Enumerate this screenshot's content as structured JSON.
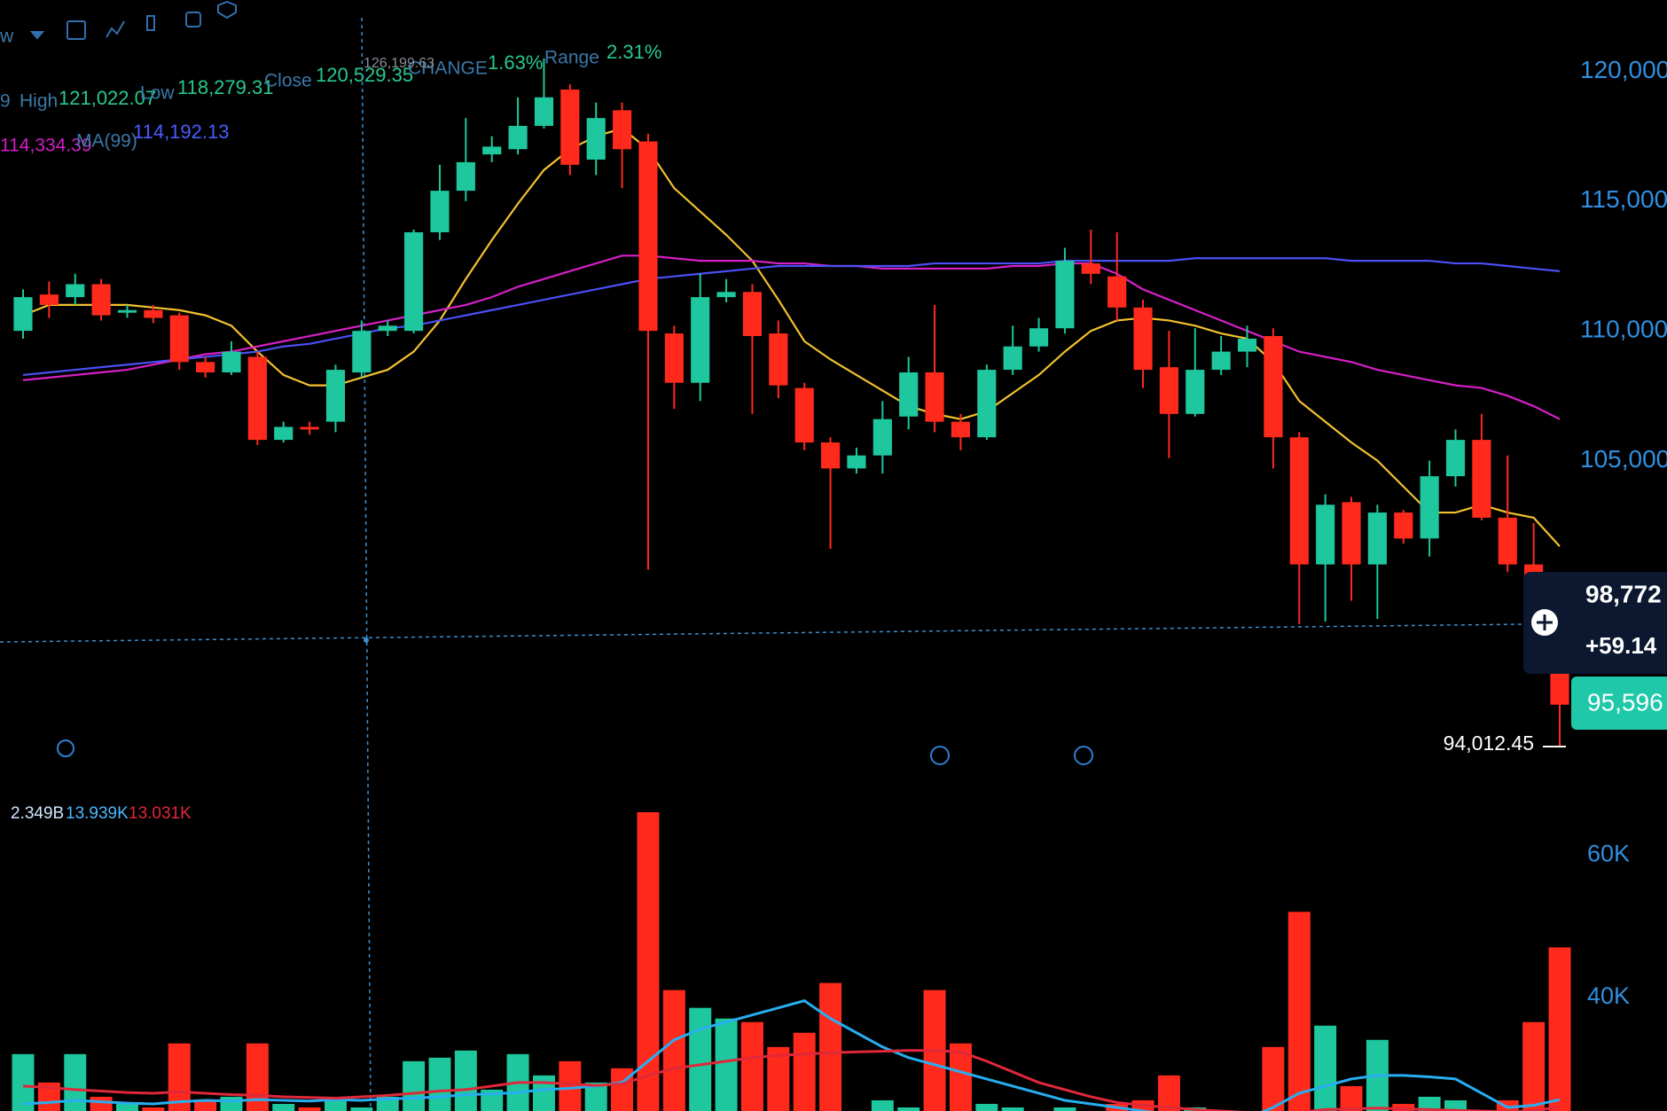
{
  "header": {
    "interval": "w",
    "partial_value": "9",
    "high_label": "High",
    "high_value": "121,022.07",
    "low_label": "Low",
    "low_value": "118,279.31",
    "close_label": "Close",
    "close_value": "120,529.35",
    "change_label": "CHANGE",
    "change_value": "1.63%",
    "range_label": "Range",
    "range_value": "2.31%",
    "ma25_value": "114,334.39",
    "ma99_value": "114,192.13",
    "volume_total": "2.349B",
    "volume_ma1": "13.939K",
    "volume_ma2": "13.031K",
    "max_marker": "126,199.63",
    "min_marker": "94,012.45",
    "crosshair_price": "98,772",
    "crosshair_change": "+59.14",
    "last_price": "95,596"
  },
  "chart_data": [
    {
      "type": "candlestick",
      "up_color": "#1ec79e",
      "down_color": "#ff2a1c",
      "open": [
        110000,
        111400,
        111300,
        111800,
        110700,
        110800,
        110600,
        108800,
        108400,
        109000,
        105800,
        106300,
        106500,
        108400,
        110000,
        110000,
        113800,
        115400,
        116800,
        117000,
        117900,
        119300,
        116600,
        118500,
        117300,
        109900,
        108000,
        111300,
        111500,
        109900,
        107800,
        105700,
        104700,
        105200,
        106700,
        108400,
        106500,
        105900,
        108500,
        109400,
        110100,
        112600,
        112100,
        110900,
        108600,
        106800,
        108500,
        109200,
        109800,
        105900,
        101000,
        103400,
        101000,
        103000,
        102000,
        104400,
        105800,
        102800,
        101000,
        98800
      ],
      "high": [
        111600,
        111900,
        112200,
        112000,
        111000,
        111000,
        110700,
        109000,
        109600,
        109200,
        106500,
        106500,
        108700,
        110400,
        110400,
        113900,
        116400,
        118200,
        117500,
        119000,
        120500,
        119500,
        118800,
        118800,
        117600,
        110200,
        112200,
        112000,
        111800,
        110400,
        108000,
        105900,
        105500,
        107300,
        109000,
        111000,
        106800,
        108700,
        110200,
        110500,
        113200,
        113900,
        113800,
        111200,
        110000,
        110100,
        109800,
        110200,
        110100,
        106100,
        103700,
        103600,
        103300,
        103100,
        105000,
        106200,
        106800,
        105200,
        102600,
        98900
      ],
      "low": [
        109700,
        110500,
        111000,
        110400,
        110500,
        110300,
        108500,
        108200,
        108300,
        105600,
        105700,
        106000,
        106100,
        108200,
        109800,
        109900,
        113500,
        115000,
        116500,
        116800,
        117800,
        116000,
        116000,
        115500,
        100800,
        107000,
        107300,
        111100,
        106800,
        107400,
        105400,
        101600,
        104500,
        104500,
        106200,
        106100,
        105400,
        105800,
        108300,
        109200,
        109900,
        111800,
        110400,
        107800,
        105100,
        106700,
        108300,
        108600,
        104700,
        98700,
        98800,
        99600,
        98900,
        101800,
        101300,
        104000,
        102700,
        100700,
        98500,
        94012.45
      ],
      "close": [
        111300,
        111000,
        111800,
        110600,
        110800,
        110500,
        108800,
        108400,
        109200,
        105800,
        106300,
        106200,
        108500,
        110000,
        110200,
        113800,
        115400,
        116500,
        117100,
        117900,
        119000,
        116400,
        118200,
        117000,
        110000,
        108000,
        111300,
        111500,
        109800,
        107900,
        105700,
        104700,
        105200,
        106600,
        108400,
        106500,
        105900,
        108500,
        109400,
        110100,
        112700,
        112200,
        110900,
        108500,
        106800,
        108500,
        109200,
        109700,
        105900,
        101000,
        103300,
        101000,
        103000,
        102000,
        104400,
        105800,
        102800,
        101000,
        99300,
        95596
      ],
      "series": [
        {
          "color": "#f2c12e",
          "values": [
            110600,
            111000,
            111000,
            111000,
            111000,
            110900,
            110800,
            110600,
            110200,
            109200,
            108300,
            107900,
            107900,
            108200,
            108500,
            109200,
            110400,
            112000,
            113500,
            114900,
            116200,
            117000,
            117500,
            117800,
            117000,
            115500,
            114600,
            113700,
            112700,
            111200,
            109600,
            108900,
            108300,
            107700,
            107100,
            106800,
            106600,
            106900,
            107600,
            108300,
            109200,
            110000,
            110400,
            110500,
            110400,
            110200,
            109900,
            109700,
            108800,
            107300,
            106500,
            105700,
            105000,
            104000,
            103000,
            103000,
            103300,
            103000,
            102800,
            101700
          ]
        },
        {
          "color": "#d81fc8",
          "values": [
            108100,
            108200,
            108300,
            108400,
            108500,
            108700,
            108900,
            109100,
            109200,
            109400,
            109600,
            109800,
            110000,
            110200,
            110400,
            110600,
            110800,
            111000,
            111300,
            111700,
            112000,
            112300,
            112600,
            112900,
            112900,
            112800,
            112700,
            112700,
            112700,
            112600,
            112600,
            112500,
            112500,
            112400,
            112400,
            112400,
            112400,
            112400,
            112500,
            112500,
            112600,
            112600,
            112200,
            111600,
            111200,
            110800,
            110400,
            110000,
            109600,
            109200,
            109000,
            108800,
            108500,
            108300,
            108100,
            107900,
            107800,
            107500,
            107100,
            106600
          ]
        },
        {
          "name": "MA(99)",
          "color": "#4b4ff5",
          "values": [
            108300,
            108400,
            108500,
            108600,
            108700,
            108800,
            108900,
            109000,
            109100,
            109200,
            109400,
            109500,
            109700,
            109900,
            110100,
            110200,
            110400,
            110600,
            110800,
            111000,
            111200,
            111400,
            111600,
            111800,
            112000,
            112100,
            112200,
            112300,
            112400,
            112500,
            112500,
            112500,
            112500,
            112500,
            112500,
            112600,
            112600,
            112600,
            112600,
            112600,
            112700,
            112700,
            112700,
            112700,
            112700,
            112800,
            112800,
            112800,
            112800,
            112800,
            112800,
            112700,
            112700,
            112700,
            112700,
            112600,
            112600,
            112500,
            112400,
            112300
          ]
        }
      ],
      "ylim": [
        92000,
        122750
      ],
      "yticks": [
        {
          "value": 120000,
          "label": "120,000"
        },
        {
          "value": 115000,
          "label": "115,000"
        },
        {
          "value": 110000,
          "label": "110,000"
        },
        {
          "value": 105000,
          "label": "105,000"
        }
      ],
      "tick_color": "#2f8fe0"
    },
    {
      "type": "bar",
      "values": [
        32000,
        28000,
        32000,
        26000,
        25000,
        24500,
        33500,
        25500,
        26000,
        33500,
        25000,
        24500,
        25500,
        24500,
        26000,
        31000,
        31500,
        32500,
        27000,
        32000,
        29000,
        31000,
        28000,
        30000,
        66000,
        41000,
        38500,
        37000,
        36500,
        33000,
        35000,
        42000,
        24000,
        25500,
        24500,
        41000,
        33500,
        25000,
        24500,
        24000,
        24500,
        24000,
        25000,
        25500,
        29000,
        24500,
        24000,
        24000,
        33000,
        52000,
        36000,
        27500,
        34000,
        25000,
        26000,
        25500,
        24000,
        25500,
        36500,
        47000
      ],
      "series": [
        {
          "color": "#27aef0",
          "values": [
            25000,
            25200,
            25500,
            25300,
            25100,
            25000,
            25300,
            25500,
            25400,
            25600,
            25500,
            25400,
            25600,
            25500,
            25700,
            25800,
            26000,
            26300,
            26400,
            26600,
            27000,
            27200,
            27500,
            28000,
            31000,
            34000,
            35500,
            36500,
            37500,
            38500,
            39500,
            37000,
            35000,
            33000,
            31500,
            30500,
            29500,
            28500,
            27500,
            26500,
            25500,
            25000,
            24500,
            24000,
            23500,
            23000,
            23000,
            23000,
            24500,
            26500,
            27500,
            28500,
            29000,
            29000,
            28800,
            28500,
            26500,
            24500,
            24800,
            25600
          ]
        },
        {
          "color": "#e0283a",
          "values": [
            27500,
            27300,
            27000,
            26800,
            26600,
            26500,
            26700,
            26500,
            26300,
            26200,
            26000,
            25900,
            25800,
            26000,
            26200,
            26500,
            26800,
            27000,
            27500,
            28000,
            28000,
            27800,
            27600,
            27800,
            29000,
            30000,
            30500,
            31000,
            31500,
            31800,
            32000,
            32200,
            32300,
            32400,
            32500,
            32500,
            32300,
            31000,
            29500,
            28000,
            27000,
            26000,
            25200,
            24800,
            24500,
            24200,
            24000,
            23800,
            23600,
            23800,
            24200,
            24300,
            24400,
            24300,
            24200,
            24100,
            24000,
            23900,
            24000,
            24600
          ]
        }
      ],
      "ylim": [
        24000,
        68000
      ],
      "yticks": [
        {
          "value": 60000,
          "label": "60K"
        },
        {
          "value": 40000,
          "label": "40K"
        }
      ],
      "tick_color": "#2f8fe0"
    }
  ]
}
